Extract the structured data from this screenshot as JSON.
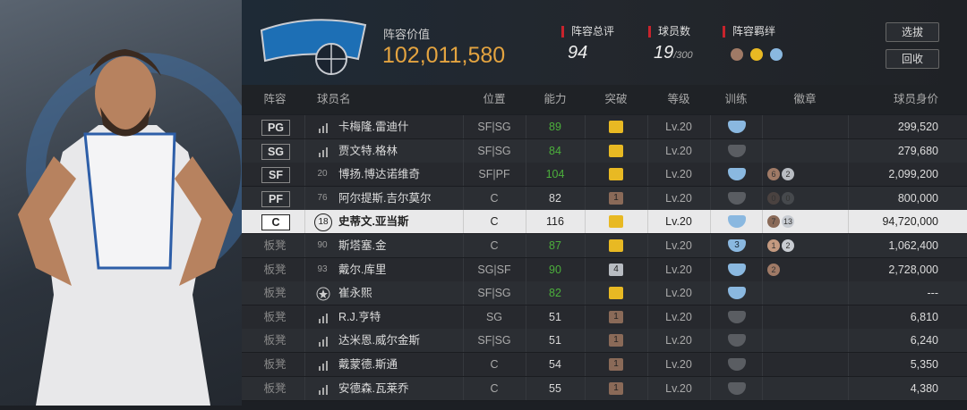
{
  "header": {
    "value_label": "阵容价值",
    "value": "102,011,580",
    "rating_label": "阵容总评",
    "rating": "94",
    "count_label": "球员数",
    "count": "19",
    "count_max": "/300",
    "bond_label": "阵容羁绊",
    "buttons": [
      "选拔",
      "回收"
    ]
  },
  "table": {
    "columns": [
      "阵容",
      "球员名",
      "位置",
      "能力",
      "突破",
      "等级",
      "训练",
      "徽章",
      "球员身价"
    ],
    "rows": [
      {
        "slot": "PG",
        "jersey": null,
        "icon": "bars",
        "name": "卡梅隆.雷迪什",
        "pos": "SF|SG",
        "ability": "89",
        "ability_color": "#4caf3c",
        "break": {
          "color": "#e8b923"
        },
        "level": "Lv.20",
        "training": {
          "color": "#8ab8e0"
        },
        "badges": [],
        "price": "299,520"
      },
      {
        "slot": "SG",
        "jersey": null,
        "icon": "bars",
        "name": "贾文特.格林",
        "pos": "SF|SG",
        "ability": "84",
        "ability_color": "#4caf3c",
        "break": {
          "color": "#e8b923"
        },
        "level": "Lv.20",
        "training": {
          "color": "#5a5d62"
        },
        "badges": [],
        "price": "279,680"
      },
      {
        "slot": "SF",
        "jersey": "20",
        "name": "博扬.博达诺维奇",
        "pos": "SF|PF",
        "ability": "104",
        "ability_color": "#4caf3c",
        "break": {
          "color": "#e8b923"
        },
        "level": "Lv.20",
        "training": {
          "color": "#8ab8e0"
        },
        "badges": [
          {
            "label": "6",
            "color": "#a07a66"
          },
          {
            "label": "2",
            "color": "#b8bcc2"
          }
        ],
        "price": "2,099,200"
      },
      {
        "slot": "PF",
        "jersey": "76",
        "name": "阿尔提斯.吉尔莫尔",
        "pos": "C",
        "ability": "82",
        "ability_color": "#d8d8d8",
        "break": {
          "label": "1",
          "color": "#8a6a58"
        },
        "level": "Lv.20",
        "training": {
          "color": "#5a5d62"
        },
        "badges": [
          {
            "label": "0",
            "color": "#4a4240"
          },
          {
            "label": "0",
            "color": "#46494d"
          }
        ],
        "price": "800,000"
      },
      {
        "slot": "C",
        "jersey": "18",
        "name": "史蒂文.亚当斯",
        "pos": "C",
        "ability": "116",
        "ability_color": "#222222",
        "break": {
          "color": "#e8b923"
        },
        "level": "Lv.20",
        "training": {
          "color": "#8ab8e0"
        },
        "badges": [
          {
            "label": "7",
            "color": "#8a6a58"
          },
          {
            "label": "13",
            "color": "#c8ccd2"
          }
        ],
        "price": "94,720,000",
        "selected": true
      },
      {
        "slot": "板凳",
        "jersey": "90",
        "name": "斯塔塞.金",
        "pos": "C",
        "ability": "87",
        "ability_color": "#4caf3c",
        "break": {
          "color": "#e8b923"
        },
        "level": "Lv.20",
        "training": {
          "label": "3",
          "color": "#8ab8e0"
        },
        "badges": [
          {
            "label": "1",
            "color": "#c49a80"
          },
          {
            "label": "2",
            "color": "#c8ccd2"
          }
        ],
        "price": "1,062,400"
      },
      {
        "slot": "板凳",
        "jersey": "93",
        "name": "戴尔.库里",
        "pos": "SG|SF",
        "ability": "90",
        "ability_color": "#4caf3c",
        "break": {
          "label": "4",
          "color": "#b8bcc2"
        },
        "level": "Lv.20",
        "training": {
          "color": "#8ab8e0"
        },
        "badges": [
          {
            "label": "2",
            "color": "#a07a66"
          }
        ],
        "price": "2,728,000"
      },
      {
        "slot": "板凳",
        "jersey": null,
        "icon": "star",
        "name": "崔永熙",
        "pos": "SF|SG",
        "ability": "82",
        "ability_color": "#4caf3c",
        "break": {
          "color": "#e8b923"
        },
        "level": "Lv.20",
        "training": {
          "color": "#8ab8e0"
        },
        "badges": [],
        "price": "---"
      },
      {
        "slot": "板凳",
        "jersey": null,
        "icon": "bars",
        "name": "R.J.亨特",
        "pos": "SG",
        "ability": "51",
        "ability_color": "#d8d8d8",
        "break": {
          "label": "1",
          "color": "#8a6a58"
        },
        "level": "Lv.20",
        "training": {
          "color": "#5a5d62"
        },
        "badges": [],
        "price": "6,810"
      },
      {
        "slot": "板凳",
        "jersey": null,
        "icon": "bars",
        "name": "达米恩.威尔金斯",
        "pos": "SF|SG",
        "ability": "51",
        "ability_color": "#d8d8d8",
        "break": {
          "label": "1",
          "color": "#8a6a58"
        },
        "level": "Lv.20",
        "training": {
          "color": "#5a5d62"
        },
        "badges": [],
        "price": "6,240"
      },
      {
        "slot": "板凳",
        "jersey": null,
        "icon": "bars",
        "name": "戴蒙德.斯通",
        "pos": "C",
        "ability": "54",
        "ability_color": "#d8d8d8",
        "break": {
          "label": "1",
          "color": "#8a6a58"
        },
        "level": "Lv.20",
        "training": {
          "color": "#5a5d62"
        },
        "badges": [],
        "price": "5,350"
      },
      {
        "slot": "板凳",
        "jersey": null,
        "icon": "bars",
        "name": "安德森.瓦莱乔",
        "pos": "C",
        "ability": "55",
        "ability_color": "#d8d8d8",
        "break": {
          "label": "1",
          "color": "#8a6a58"
        },
        "level": "Lv.20",
        "training": {
          "color": "#5a5d62"
        },
        "badges": [],
        "price": "4,380"
      }
    ]
  }
}
